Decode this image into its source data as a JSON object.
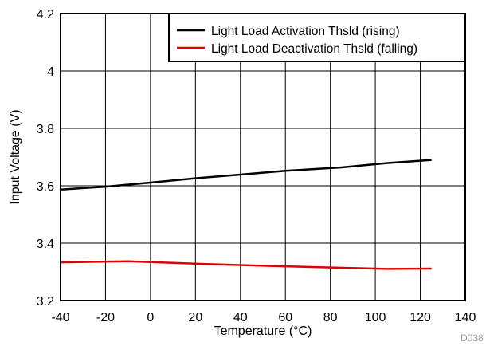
{
  "chart_data": {
    "type": "line",
    "xlabel": "Temperature (°C)",
    "ylabel": "Input Voltage (V)",
    "xlim": [
      -40,
      140
    ],
    "ylim": [
      3.2,
      4.2
    ],
    "xticks": [
      -40,
      -20,
      0,
      20,
      40,
      60,
      80,
      100,
      120,
      140
    ],
    "yticks": [
      3.2,
      3.4,
      3.6,
      3.8,
      4.0,
      4.2
    ],
    "x_tick_labels": [
      "-40",
      "-20",
      "0",
      "20",
      "40",
      "60",
      "80",
      "100",
      "120",
      "140"
    ],
    "y_tick_labels": [
      "3.2",
      "3.4",
      "3.6",
      "3.8",
      "4",
      "4.2"
    ],
    "grid": true,
    "legend_position": "top-right",
    "series": [
      {
        "name": "Light Load Activation Thsld (rising)",
        "color": "#000000",
        "x": [
          -40,
          -20,
          0,
          20,
          40,
          60,
          85,
          105,
          125
        ],
        "y": [
          3.587,
          3.597,
          3.611,
          3.626,
          3.639,
          3.652,
          3.664,
          3.679,
          3.69
        ]
      },
      {
        "name": "Light Load Deactivation Thsld (falling)",
        "color": "#e00000",
        "x": [
          -40,
          -10,
          0,
          25,
          50,
          75,
          105,
          125
        ],
        "y": [
          3.333,
          3.337,
          3.334,
          3.327,
          3.321,
          3.316,
          3.31,
          3.311
        ]
      }
    ],
    "doc_id": "D038"
  }
}
